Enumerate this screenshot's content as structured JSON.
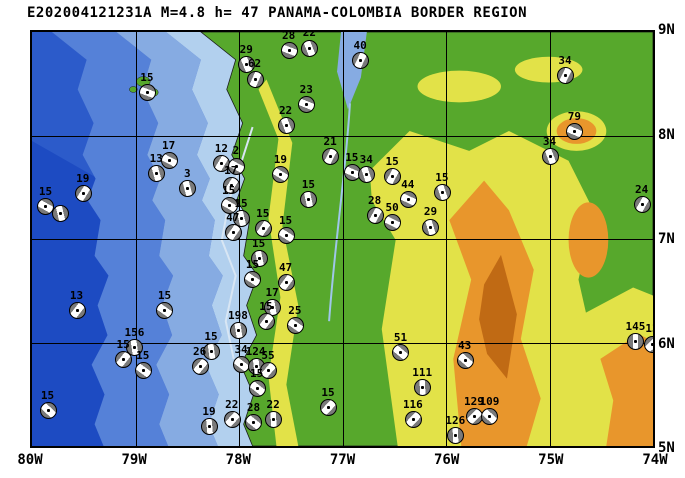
{
  "title": "E202004121231A M=4.8 h= 47 PANAMA-COLOMBIA BORDER REGION",
  "map": {
    "bounds": {
      "west": -80,
      "east": -74,
      "south": 5,
      "north": 9
    },
    "lon_ticks": [
      {
        "label": "80W",
        "lon": -80
      },
      {
        "label": "79W",
        "lon": -79
      },
      {
        "label": "78W",
        "lon": -78
      },
      {
        "label": "77W",
        "lon": -77
      },
      {
        "label": "76W",
        "lon": -76
      },
      {
        "label": "75W",
        "lon": -75
      },
      {
        "label": "74W",
        "lon": -74
      }
    ],
    "lat_ticks": [
      {
        "label": "9N",
        "lat": 9
      },
      {
        "label": "8N",
        "lat": 8
      },
      {
        "label": "7N",
        "lat": 7
      },
      {
        "label": "6N",
        "lat": 6
      },
      {
        "label": "5N",
        "lat": 5
      }
    ],
    "grid_lons": [
      -79,
      -78,
      -77,
      -76,
      -75
    ],
    "grid_lats": [
      8,
      7,
      6
    ]
  },
  "palette": {
    "ocean_deepest": "#1d4bc2",
    "ocean_deep": "#2c5bca",
    "ocean_mid": "#5581d8",
    "ocean_shallow": "#86abe2",
    "ocean_shelf": "#b2d0ee",
    "land_low": "#57a82c",
    "land_mid": "#e2e248",
    "land_high": "#e8962c",
    "land_peak": "#c06a14",
    "grid": "#000000",
    "beachball_fill": "#7a7a7a"
  },
  "events": [
    {
      "label": "15",
      "lon": -78.89,
      "lat": 8.42
    },
    {
      "label": "29",
      "lon": -77.93,
      "lat": 8.69
    },
    {
      "label": "62",
      "lon": -77.85,
      "lat": 8.55
    },
    {
      "label": "28",
      "lon": -77.52,
      "lat": 8.83
    },
    {
      "label": "22",
      "lon": -77.32,
      "lat": 8.85
    },
    {
      "label": "40",
      "lon": -76.83,
      "lat": 8.73
    },
    {
      "label": "23",
      "lon": -77.35,
      "lat": 8.3
    },
    {
      "label": "22",
      "lon": -77.55,
      "lat": 8.1
    },
    {
      "label": "34",
      "lon": -74.85,
      "lat": 8.58
    },
    {
      "label": "79",
      "lon": -74.76,
      "lat": 8.04
    },
    {
      "label": "34",
      "lon": -75.0,
      "lat": 7.8
    },
    {
      "label": "21",
      "lon": -77.12,
      "lat": 7.8
    },
    {
      "label": "15",
      "lon": -76.91,
      "lat": 7.65
    },
    {
      "label": "34",
      "lon": -76.77,
      "lat": 7.63
    },
    {
      "label": "15",
      "lon": -76.52,
      "lat": 7.61
    },
    {
      "label": "44",
      "lon": -76.37,
      "lat": 7.39
    },
    {
      "label": "15",
      "lon": -76.04,
      "lat": 7.45
    },
    {
      "label": "28",
      "lon": -76.69,
      "lat": 7.23
    },
    {
      "label": "50",
      "lon": -76.52,
      "lat": 7.16
    },
    {
      "label": "29",
      "lon": -76.15,
      "lat": 7.12
    },
    {
      "label": "24",
      "lon": -74.11,
      "lat": 7.34
    },
    {
      "label": "17",
      "lon": -78.68,
      "lat": 7.76
    },
    {
      "label": "13",
      "lon": -78.8,
      "lat": 7.64
    },
    {
      "label": "12",
      "lon": -78.17,
      "lat": 7.73
    },
    {
      "label": "2",
      "lon": -78.03,
      "lat": 7.71
    },
    {
      "label": "3",
      "lon": -78.5,
      "lat": 7.49
    },
    {
      "label": "19",
      "lon": -79.51,
      "lat": 7.44
    },
    {
      "label": "15",
      "lon": -79.87,
      "lat": 7.32
    },
    {
      "label": "",
      "lon": -79.73,
      "lat": 7.25
    },
    {
      "label": "17",
      "lon": -78.08,
      "lat": 7.52
    },
    {
      "label": "15",
      "lon": -78.1,
      "lat": 7.33
    },
    {
      "label": "15",
      "lon": -77.98,
      "lat": 7.2
    },
    {
      "label": "47",
      "lon": -78.06,
      "lat": 7.07
    },
    {
      "label": "19",
      "lon": -77.6,
      "lat": 7.63
    },
    {
      "label": "15",
      "lon": -77.33,
      "lat": 7.39
    },
    {
      "label": "15",
      "lon": -77.77,
      "lat": 7.11
    },
    {
      "label": "15",
      "lon": -77.55,
      "lat": 7.04
    },
    {
      "label": "15",
      "lon": -77.81,
      "lat": 6.82
    },
    {
      "label": "47",
      "lon": -77.55,
      "lat": 6.58
    },
    {
      "label": "15",
      "lon": -77.87,
      "lat": 6.61
    },
    {
      "label": "17",
      "lon": -77.68,
      "lat": 6.34
    },
    {
      "label": "15",
      "lon": -77.74,
      "lat": 6.21
    },
    {
      "label": "25",
      "lon": -77.46,
      "lat": 6.17
    },
    {
      "label": "198",
      "lon": -78.01,
      "lat": 6.12
    },
    {
      "label": "13",
      "lon": -79.57,
      "lat": 6.31
    },
    {
      "label": "15",
      "lon": -78.72,
      "lat": 6.31
    },
    {
      "label": "156",
      "lon": -79.01,
      "lat": 5.96
    },
    {
      "label": "15",
      "lon": -79.12,
      "lat": 5.84
    },
    {
      "label": "15",
      "lon": -78.93,
      "lat": 5.73
    },
    {
      "label": "15",
      "lon": -78.27,
      "lat": 5.92
    },
    {
      "label": "26",
      "lon": -78.38,
      "lat": 5.77
    },
    {
      "label": "34",
      "lon": -77.98,
      "lat": 5.79
    },
    {
      "label": "124",
      "lon": -77.84,
      "lat": 5.77
    },
    {
      "label": "55",
      "lon": -77.72,
      "lat": 5.73
    },
    {
      "label": "15",
      "lon": -77.83,
      "lat": 5.56
    },
    {
      "label": "19",
      "lon": -78.29,
      "lat": 5.19
    },
    {
      "label": "22",
      "lon": -78.07,
      "lat": 5.26
    },
    {
      "label": "28",
      "lon": -77.86,
      "lat": 5.23
    },
    {
      "label": "22",
      "lon": -77.67,
      "lat": 5.26
    },
    {
      "label": "15",
      "lon": -77.14,
      "lat": 5.38
    },
    {
      "label": "51",
      "lon": -76.44,
      "lat": 5.91
    },
    {
      "label": "111",
      "lon": -76.23,
      "lat": 5.57
    },
    {
      "label": "116",
      "lon": -76.32,
      "lat": 5.26
    },
    {
      "label": "43",
      "lon": -75.82,
      "lat": 5.83
    },
    {
      "label": "126",
      "lon": -75.91,
      "lat": 5.11
    },
    {
      "label": "129",
      "lon": -75.73,
      "lat": 5.29
    },
    {
      "label": "109",
      "lon": -75.58,
      "lat": 5.29
    },
    {
      "label": "145",
      "lon": -74.17,
      "lat": 6.01
    },
    {
      "label": "13",
      "lon": -74.01,
      "lat": 5.99
    },
    {
      "label": "15",
      "lon": -79.85,
      "lat": 5.35
    }
  ]
}
